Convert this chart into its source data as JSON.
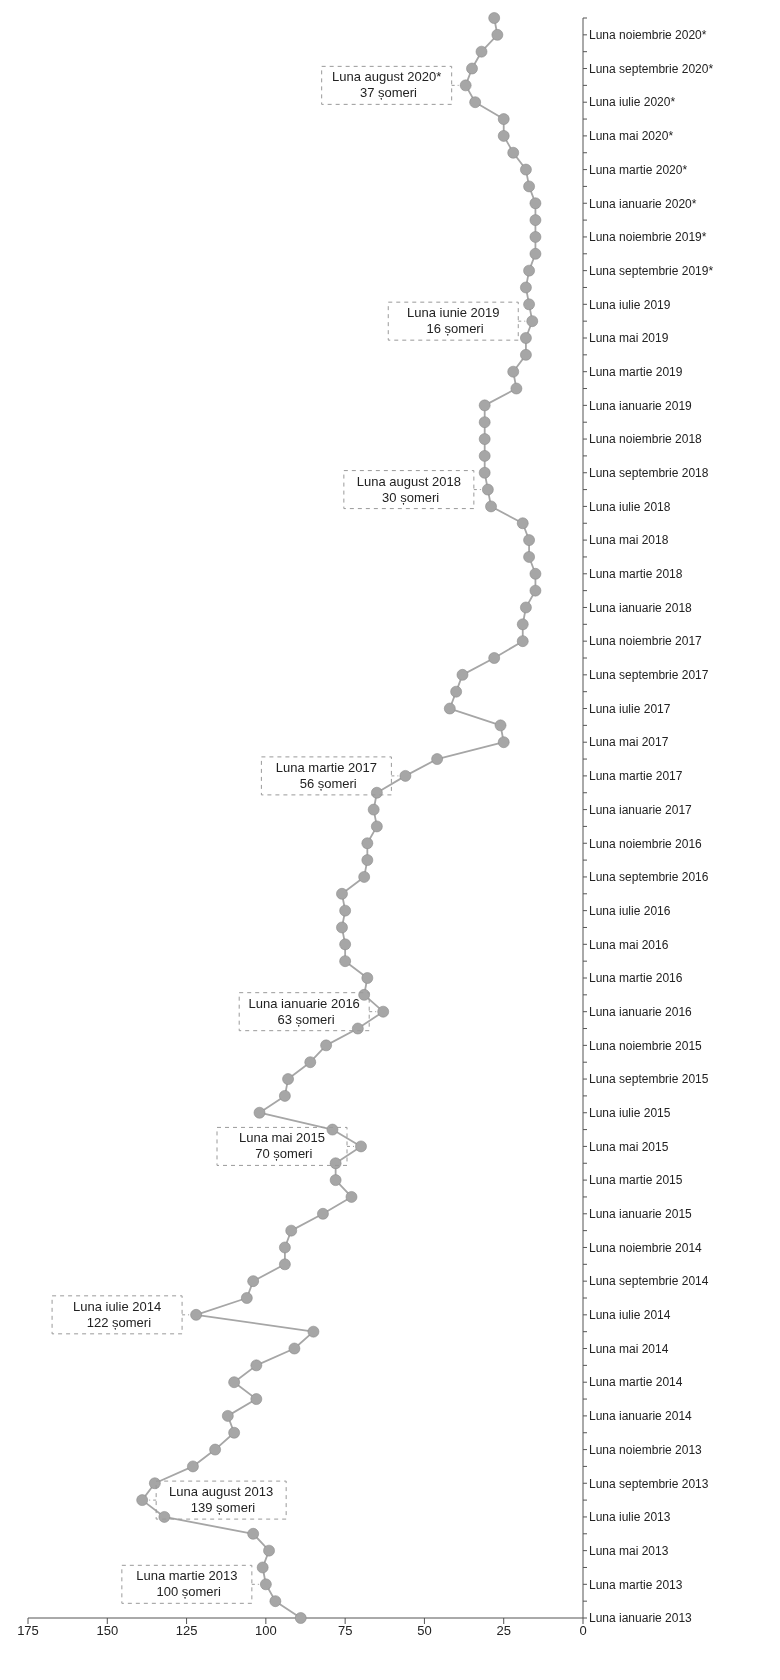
{
  "chart_data": {
    "type": "line",
    "categories": [
      null,
      "Luna noiembrie 2020*",
      null,
      "Luna septembrie 2020*",
      null,
      "Luna iulie 2020*",
      null,
      "Luna mai 2020*",
      null,
      "Luna martie 2020*",
      null,
      "Luna ianuarie 2020*",
      null,
      "Luna noiembrie 2019*",
      null,
      "Luna septembrie 2019*",
      null,
      "Luna iulie 2019",
      null,
      "Luna mai 2019",
      null,
      "Luna martie 2019",
      null,
      "Luna ianuarie 2019",
      null,
      "Luna noiembrie 2018",
      null,
      "Luna septembrie 2018",
      null,
      "Luna iulie 2018",
      null,
      "Luna mai 2018",
      null,
      "Luna martie 2018",
      null,
      "Luna ianuarie 2018",
      null,
      "Luna noiembrie 2017",
      null,
      "Luna septembrie 2017",
      null,
      "Luna iulie 2017",
      null,
      "Luna mai 2017",
      null,
      "Luna martie 2017",
      null,
      "Luna ianuarie 2017",
      null,
      "Luna noiembrie 2016",
      null,
      "Luna septembrie 2016",
      null,
      "Luna iulie 2016",
      null,
      "Luna mai 2016",
      null,
      "Luna martie 2016",
      null,
      "Luna ianuarie 2016",
      null,
      "Luna noiembrie 2015",
      null,
      "Luna septembrie 2015",
      null,
      "Luna iulie 2015",
      null,
      "Luna mai 2015",
      null,
      "Luna martie 2015",
      null,
      "Luna ianuarie 2015",
      null,
      "Luna noiembrie 2014",
      null,
      "Luna septembrie 2014",
      null,
      "Luna iulie 2014",
      null,
      "Luna mai 2014",
      null,
      "Luna martie 2014",
      null,
      "Luna ianuarie 2014",
      null,
      "Luna noiembrie 2013",
      null,
      "Luna septembrie 2013",
      null,
      "Luna iulie 2013",
      null,
      "Luna mai 2013",
      null,
      "Luna martie 2013",
      null,
      "Luna ianuarie 2013"
    ],
    "values": [
      28,
      27,
      32,
      35,
      37,
      34,
      25,
      25,
      22,
      18,
      17,
      15,
      15,
      15,
      15,
      17,
      18,
      17,
      16,
      18,
      18,
      22,
      21,
      31,
      31,
      31,
      31,
      31,
      30,
      29,
      19,
      17,
      17,
      15,
      15,
      18,
      19,
      19,
      28,
      38,
      40,
      42,
      26,
      25,
      46,
      56,
      65,
      66,
      65,
      68,
      68,
      69,
      76,
      75,
      76,
      75,
      75,
      68,
      69,
      63,
      71,
      81,
      86,
      93,
      94,
      102,
      79,
      70,
      78,
      78,
      73,
      82,
      92,
      94,
      94,
      104,
      106,
      122,
      85,
      91,
      103,
      110,
      103,
      112,
      110,
      116,
      123,
      135,
      139,
      132,
      104,
      99,
      101,
      100,
      97,
      89
    ],
    "color": "#a6a6a6",
    "marker": "circle",
    "line_style": "solid",
    "grid": false,
    "legend": false,
    "orientation": "horizontal",
    "xlim": [
      175,
      0
    ],
    "xticks": [
      0,
      25,
      50,
      75,
      100,
      125,
      150,
      175
    ],
    "annotations": [
      {
        "text": "Luna martie 2013\n100 șomeri",
        "x": 100
      },
      {
        "text": "Luna august 2013\n139 șomeri",
        "x": 139
      },
      {
        "text": "Luna iulie 2014\n122 șomeri",
        "x": 122
      },
      {
        "text": "Luna mai 2015\n70 șomeri",
        "x": 70
      },
      {
        "text": "Luna ianuarie 2016\n63 șomeri",
        "x": 63
      },
      {
        "text": "Luna martie 2017\n56 șomeri",
        "x": 56
      },
      {
        "text": "Luna august 2018\n30 șomeri",
        "x": 30
      },
      {
        "text": "Luna iunie 2019\n16 șomeri",
        "x": 16
      },
      {
        "text": "Luna august 2020*\n37 șomeri",
        "x": 37
      }
    ]
  }
}
